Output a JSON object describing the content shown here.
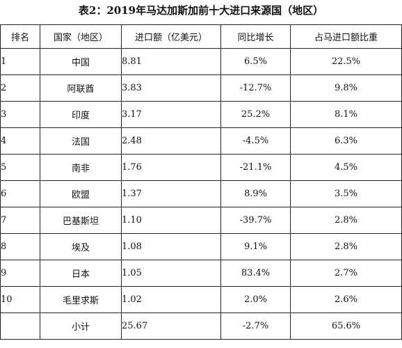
{
  "title": "表2：2019年马达加斯加前十大进口来源国（地区）",
  "headers": [
    "排名",
    "国家（地区）",
    "进口额（亿美元）",
    "同比增长",
    "占马进口额比重"
  ],
  "rows": [
    {
      "rank": "1",
      "country": "中国",
      "value": "8.81",
      "growth": "6.5%",
      "share": "22.5%"
    },
    {
      "rank": "2",
      "country": "阿联酋",
      "value": "3.83",
      "growth": "-12.7%",
      "share": "9.8%"
    },
    {
      "rank": "3",
      "country": "印度",
      "value": "3.17",
      "growth": "25.2%",
      "share": "8.1%"
    },
    {
      "rank": "4",
      "country": "法国",
      "value": "2.48",
      "growth": "-4.5%",
      "share": "6.3%"
    },
    {
      "rank": "5",
      "country": "南非",
      "value": "1.76",
      "growth": "-21.1%",
      "share": "4.5%"
    },
    {
      "rank": "6",
      "country": "欧盟",
      "value": "1.37",
      "growth": "8.9%",
      "share": "3.5%"
    },
    {
      "rank": "7",
      "country": "巴基斯坦",
      "value": "1.10",
      "growth": "-39.7%",
      "share": "2.8%"
    },
    {
      "rank": "8",
      "country": "埃及",
      "value": "1.08",
      "growth": "9.1%",
      "share": "2.8%"
    },
    {
      "rank": "9",
      "country": "日本",
      "value": "1.05",
      "growth": "83.4%",
      "share": "2.7%"
    },
    {
      "rank": "10",
      "country": "毛里求斯",
      "value": "1.02",
      "growth": "2.0%",
      "share": "2.6%"
    },
    {
      "rank": "",
      "country": "小计",
      "value": "25.67",
      "growth": "-2.7%",
      "share": "65.6%"
    }
  ]
}
